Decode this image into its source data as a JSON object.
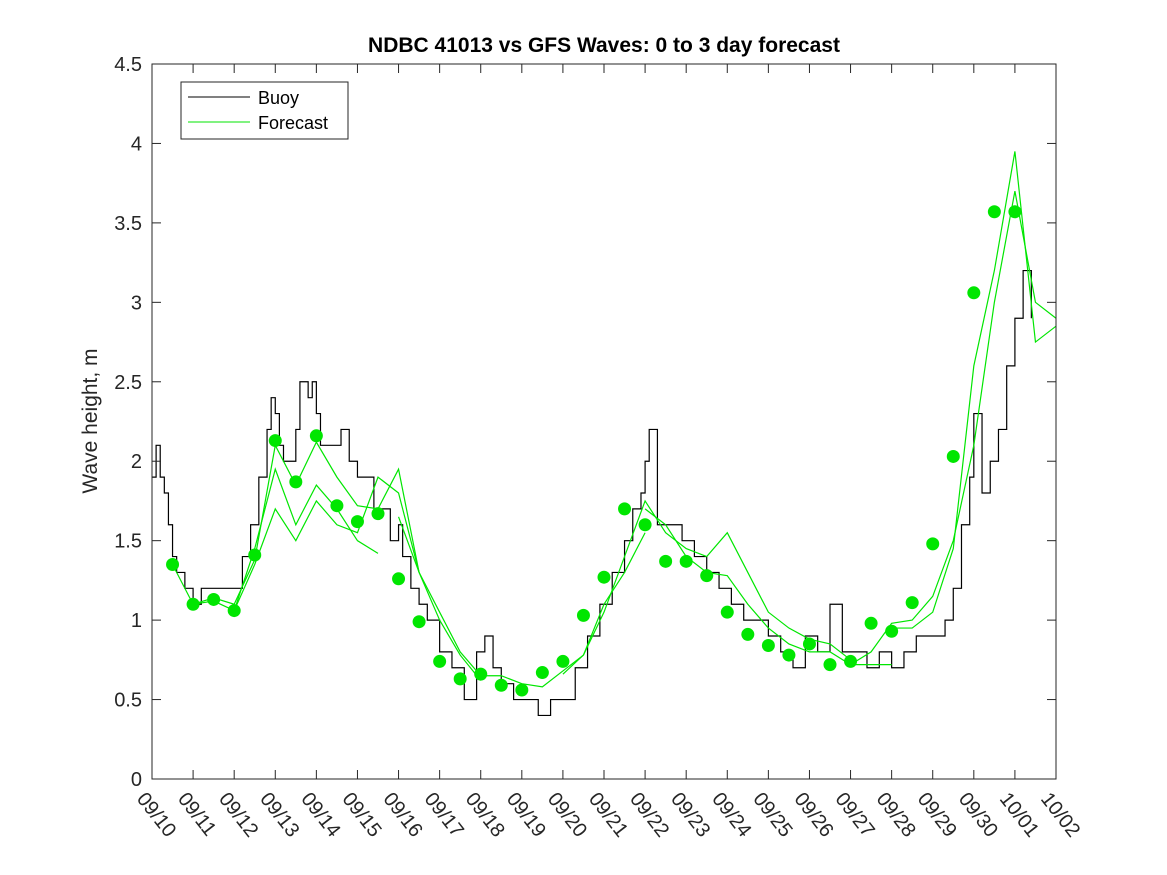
{
  "chart_data": {
    "type": "line",
    "title": "NDBC 41013 vs GFS Waves: 0 to 3 day forecast",
    "xlabel": "",
    "ylabel": "Wave height, m",
    "xlim": [
      0,
      22
    ],
    "ylim": [
      0,
      4.5
    ],
    "y_ticks": [
      0,
      0.5,
      1,
      1.5,
      2,
      2.5,
      3,
      3.5,
      4,
      4.5
    ],
    "y_tick_labels": [
      "0",
      "0.5",
      "1",
      "1.5",
      "2",
      "2.5",
      "3",
      "3.5",
      "4",
      "4.5"
    ],
    "x_ticks": [
      0,
      1,
      2,
      3,
      4,
      5,
      6,
      7,
      8,
      9,
      10,
      11,
      12,
      13,
      14,
      15,
      16,
      17,
      18,
      19,
      20,
      21,
      22
    ],
    "x_tick_labels": [
      "09/10",
      "09/11",
      "09/12",
      "09/13",
      "09/14",
      "09/15",
      "09/16",
      "09/17",
      "09/18",
      "09/19",
      "09/20",
      "09/21",
      "09/22",
      "09/23",
      "09/24",
      "09/25",
      "09/26",
      "09/27",
      "09/28",
      "09/29",
      "09/30",
      "10/01",
      "10/02"
    ],
    "legend": {
      "placement": "top-left",
      "entries": [
        "Buoy",
        "Forecast"
      ]
    },
    "colors": {
      "buoy": "#000000",
      "forecast": "#00e600",
      "axis": "#262626"
    },
    "series": [
      {
        "name": "Buoy",
        "x": [
          0,
          0.1,
          0.2,
          0.3,
          0.4,
          0.5,
          0.6,
          0.8,
          1.0,
          1.2,
          1.5,
          1.8,
          2.0,
          2.2,
          2.4,
          2.6,
          2.8,
          2.9,
          3.0,
          3.1,
          3.2,
          3.4,
          3.5,
          3.6,
          3.8,
          3.9,
          4.0,
          4.1,
          4.3,
          4.6,
          4.8,
          5.0,
          5.2,
          5.4,
          5.6,
          5.8,
          6.0,
          6.1,
          6.3,
          6.5,
          6.7,
          7.0,
          7.3,
          7.6,
          7.9,
          8.1,
          8.3,
          8.5,
          8.8,
          9.1,
          9.4,
          9.7,
          10.0,
          10.3,
          10.6,
          10.9,
          11.2,
          11.5,
          11.7,
          11.9,
          12.0,
          12.1,
          12.3,
          12.6,
          12.9,
          13.2,
          13.5,
          13.8,
          14.1,
          14.4,
          14.7,
          15.0,
          15.3,
          15.6,
          15.9,
          16.2,
          16.5,
          16.8,
          17.1,
          17.4,
          17.7,
          18.0,
          18.3,
          18.6,
          18.9,
          19.1,
          19.3,
          19.5,
          19.7,
          19.9,
          20.0,
          20.2,
          20.4,
          20.6,
          20.8,
          21.0,
          21.2,
          21.4
        ],
        "values": [
          1.9,
          2.1,
          1.9,
          1.8,
          1.6,
          1.4,
          1.3,
          1.2,
          1.1,
          1.2,
          1.2,
          1.2,
          1.2,
          1.4,
          1.6,
          1.9,
          2.2,
          2.4,
          2.3,
          2.1,
          2.0,
          2.0,
          2.2,
          2.5,
          2.4,
          2.5,
          2.3,
          2.1,
          2.1,
          2.2,
          2.0,
          1.9,
          1.9,
          1.7,
          1.7,
          1.5,
          1.6,
          1.4,
          1.2,
          1.1,
          1.0,
          0.8,
          0.7,
          0.5,
          0.8,
          0.9,
          0.7,
          0.6,
          0.5,
          0.5,
          0.4,
          0.5,
          0.5,
          0.7,
          0.9,
          1.1,
          1.3,
          1.5,
          1.7,
          1.8,
          2.0,
          2.2,
          1.6,
          1.6,
          1.5,
          1.4,
          1.3,
          1.2,
          1.1,
          1.0,
          1.0,
          0.9,
          0.8,
          0.7,
          0.9,
          0.8,
          1.1,
          0.8,
          0.8,
          0.7,
          0.8,
          0.7,
          0.8,
          0.9,
          0.9,
          0.9,
          1.0,
          1.2,
          1.6,
          1.9,
          2.3,
          1.8,
          2.0,
          2.2,
          2.6,
          2.9,
          3.2,
          2.9
        ]
      },
      {
        "name": "Forecast",
        "runs": [
          {
            "x": [
              0.5,
              1.0,
              1.5,
              2.0,
              2.5,
              3.0,
              3.5,
              4.0,
              4.5,
              5.0,
              5.5
            ],
            "values": [
              1.35,
              1.1,
              1.12,
              1.06,
              1.45,
              1.95,
              1.6,
              1.85,
              1.7,
              1.5,
              1.42
            ]
          },
          {
            "x": [
              1.0,
              1.5,
              2.0,
              2.5,
              3.0,
              3.5,
              4.0,
              4.5,
              5.0,
              5.5,
              6.0,
              6.5
            ],
            "values": [
              1.1,
              1.14,
              1.1,
              1.38,
              2.1,
              1.85,
              2.12,
              1.9,
              1.72,
              1.7,
              1.95,
              1.3
            ]
          },
          {
            "x": [
              2.0,
              2.5,
              3.0,
              3.5,
              4.0,
              4.5,
              5.0,
              5.5,
              6.0,
              6.5,
              7.0,
              7.5,
              8.0
            ],
            "values": [
              1.06,
              1.35,
              1.7,
              1.5,
              1.75,
              1.6,
              1.55,
              1.9,
              1.8,
              1.3,
              1.0,
              0.78,
              0.62
            ]
          },
          {
            "x": [
              6.0,
              6.5,
              7.0,
              7.5,
              8.0,
              8.5,
              9.0,
              9.5,
              10.0,
              10.5,
              11.0,
              11.5,
              12.0
            ],
            "values": [
              1.65,
              1.3,
              1.05,
              0.8,
              0.65,
              0.65,
              0.6,
              0.58,
              0.68,
              0.78,
              1.1,
              1.3,
              1.55
            ]
          },
          {
            "x": [
              10.0,
              10.5,
              11.0,
              11.5,
              12.0,
              12.5,
              13.0,
              13.5,
              14.0,
              14.5,
              15.0,
              15.5,
              16.0,
              16.5,
              17.0
            ],
            "values": [
              0.66,
              0.78,
              1.05,
              1.4,
              1.75,
              1.55,
              1.45,
              1.4,
              1.55,
              1.3,
              1.05,
              0.95,
              0.88,
              0.85,
              0.75
            ]
          },
          {
            "x": [
              12.0,
              12.5,
              13.0,
              13.5,
              14.0,
              14.5,
              15.0,
              15.5,
              16.0,
              16.5,
              17.0,
              17.5,
              18.0
            ],
            "values": [
              1.7,
              1.6,
              1.4,
              1.3,
              1.28,
              1.1,
              0.95,
              0.85,
              0.8,
              0.8,
              0.72,
              0.72,
              0.72
            ]
          },
          {
            "x": [
              17.0,
              17.5,
              18.0,
              18.5,
              19.0,
              19.5,
              20.0,
              20.5,
              21.0,
              21.5,
              22.0
            ],
            "values": [
              0.72,
              0.8,
              0.98,
              1.0,
              1.15,
              1.5,
              2.1,
              3.0,
              3.7,
              3.0,
              2.9
            ]
          },
          {
            "x": [
              18.0,
              18.5,
              19.0,
              19.5,
              20.0,
              20.5,
              21.0,
              21.5,
              22.0
            ],
            "values": [
              0.95,
              0.95,
              1.05,
              1.45,
              2.6,
              3.2,
              3.95,
              2.75,
              2.85
            ]
          }
        ],
        "markers": {
          "x": [
            0.5,
            1.0,
            1.5,
            2.0,
            2.5,
            3.0,
            3.5,
            4.0,
            4.5,
            5.0,
            5.5,
            6.0,
            6.5,
            7.0,
            7.5,
            8.0,
            8.5,
            9.0,
            9.5,
            10.0,
            10.5,
            11.0,
            11.5,
            12.0,
            12.5,
            13.0,
            13.5,
            14.0,
            14.5,
            15.0,
            15.5,
            16.0,
            16.5,
            17.0,
            17.5,
            18.0,
            18.5,
            19.0,
            19.5,
            20.0,
            20.5,
            21.0
          ],
          "values": [
            1.35,
            1.1,
            1.13,
            1.06,
            1.41,
            2.13,
            1.87,
            2.16,
            1.72,
            1.62,
            1.67,
            1.26,
            0.99,
            0.74,
            0.63,
            0.66,
            0.59,
            0.56,
            0.67,
            0.74,
            1.03,
            1.27,
            1.7,
            1.6,
            1.37,
            1.37,
            1.28,
            1.05,
            0.91,
            0.84,
            0.78,
            0.85,
            0.72,
            0.74,
            0.98,
            0.93,
            1.11,
            1.48,
            2.03,
            3.06,
            3.57,
            3.57
          ]
        }
      }
    ]
  }
}
